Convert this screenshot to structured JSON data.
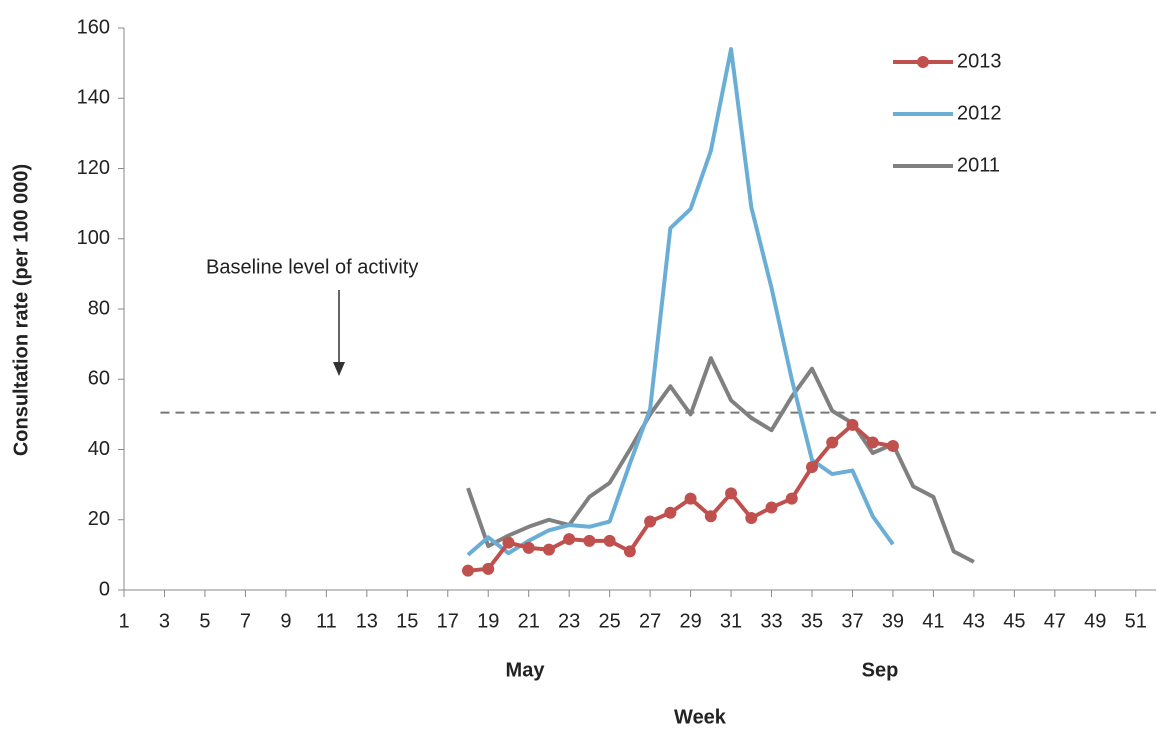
{
  "chart_data": {
    "type": "line",
    "y_label": "Consultation rate (per 100 000)",
    "x_label": "Week",
    "month_labels": [
      "May",
      "Sep"
    ],
    "baseline_label": "Baseline level of activity",
    "baseline": 50.5,
    "xlim": [
      1,
      52
    ],
    "xticks": [
      1,
      3,
      5,
      7,
      9,
      11,
      13,
      15,
      17,
      19,
      21,
      23,
      25,
      27,
      29,
      31,
      33,
      35,
      37,
      39,
      41,
      43,
      45,
      47,
      49,
      51
    ],
    "ylim": [
      0,
      160
    ],
    "yticks": [
      0,
      20,
      40,
      60,
      80,
      100,
      120,
      140,
      160
    ],
    "legend": "top-right",
    "series": [
      {
        "name": "2013",
        "color": "#c0504d",
        "markers": true,
        "x": [
          18,
          19,
          20,
          21,
          22,
          23,
          24,
          25,
          26,
          27,
          28,
          29,
          30,
          31,
          32,
          33,
          34,
          35,
          36,
          37,
          38,
          39
        ],
        "values": [
          5.5,
          6,
          13.5,
          12,
          11.5,
          14.5,
          14,
          14,
          11,
          19.5,
          22,
          26,
          21,
          27.5,
          20.5,
          23.5,
          26,
          35,
          42,
          47,
          42,
          41
        ]
      },
      {
        "name": "2012",
        "color": "#6aaed6",
        "markers": false,
        "x": [
          18,
          19,
          20,
          21,
          22,
          23,
          24,
          25,
          26,
          27,
          28,
          29,
          30,
          31,
          32,
          33,
          34,
          35,
          36,
          37,
          38,
          39
        ],
        "values": [
          10,
          15,
          10.5,
          14,
          17,
          18.5,
          18,
          19.5,
          36,
          51.5,
          103,
          108.5,
          125,
          154,
          109,
          86,
          60,
          37,
          33,
          34,
          21,
          13
        ]
      },
      {
        "name": "2011",
        "color": "#808080",
        "markers": false,
        "x": [
          18,
          19,
          20,
          21,
          22,
          23,
          24,
          25,
          26,
          27,
          28,
          29,
          30,
          31,
          32,
          33,
          34,
          35,
          36,
          37,
          38,
          39,
          40,
          41,
          42,
          43
        ],
        "values": [
          29,
          12.5,
          15.5,
          18,
          20,
          18.5,
          26.5,
          30.5,
          40,
          50,
          58,
          50,
          66,
          54,
          49,
          45.5,
          55,
          63,
          51,
          47.5,
          39,
          41.5,
          29.5,
          26.5,
          11,
          8
        ]
      }
    ]
  }
}
